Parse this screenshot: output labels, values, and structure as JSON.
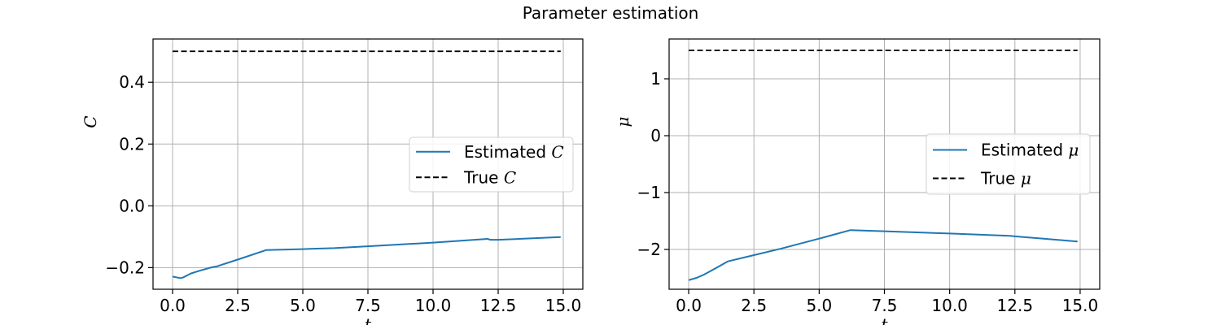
{
  "figure": {
    "title": "Parameter estimation"
  },
  "chart_data": [
    {
      "type": "line",
      "id": "C",
      "title": "",
      "xlabel": "t",
      "ylabel": "C",
      "xlim": [
        -0.75,
        15.75
      ],
      "ylim": [
        -0.27,
        0.54
      ],
      "xticks": [
        0.0,
        2.5,
        5.0,
        7.5,
        10.0,
        12.5,
        15.0
      ],
      "xtick_labels": [
        "0.0",
        "2.5",
        "5.0",
        "7.5",
        "10.0",
        "12.5",
        "15.0"
      ],
      "yticks": [
        -0.2,
        0.0,
        0.2,
        0.4
      ],
      "ytick_labels": [
        "−0.2",
        "0.0",
        "0.2",
        "0.4"
      ],
      "grid": true,
      "legend_position": "center-right",
      "series": [
        {
          "name": "Estimated C",
          "legend_prefix": "Estimated ",
          "legend_symbol": "C",
          "color": "#1f77b4",
          "style": "solid",
          "x": [
            0.0,
            0.3,
            0.4,
            0.7,
            1.0,
            1.5,
            1.7,
            2.5,
            3.6,
            5.0,
            6.2,
            7.5,
            10.0,
            12.1,
            12.2,
            12.5,
            14.9
          ],
          "y": [
            -0.229,
            -0.234,
            -0.232,
            -0.219,
            -0.211,
            -0.199,
            -0.196,
            -0.174,
            -0.143,
            -0.14,
            -0.137,
            -0.131,
            -0.119,
            -0.107,
            -0.11,
            -0.11,
            -0.101
          ]
        },
        {
          "name": "True C",
          "legend_prefix": "True ",
          "legend_symbol": "C",
          "color": "#000000",
          "style": "dashed",
          "x": [
            0.0,
            14.9
          ],
          "y": [
            0.5,
            0.5
          ]
        }
      ]
    },
    {
      "type": "line",
      "id": "mu",
      "title": "",
      "xlabel": "t",
      "ylabel": "μ",
      "xlim": [
        -0.75,
        15.75
      ],
      "ylim": [
        -2.7,
        1.7
      ],
      "xticks": [
        0.0,
        2.5,
        5.0,
        7.5,
        10.0,
        12.5,
        15.0
      ],
      "xtick_labels": [
        "0.0",
        "2.5",
        "5.0",
        "7.5",
        "10.0",
        "12.5",
        "15.0"
      ],
      "yticks": [
        -2,
        -1,
        0,
        1
      ],
      "ytick_labels": [
        "−2",
        "−1",
        "0",
        "1"
      ],
      "grid": true,
      "legend_position": "center-right",
      "series": [
        {
          "name": "Estimated μ",
          "legend_prefix": "Estimated ",
          "legend_symbol": "μ",
          "color": "#1f77b4",
          "style": "solid",
          "x": [
            0.0,
            0.3,
            0.6,
            1.0,
            1.5,
            2.5,
            3.5,
            5.0,
            6.2,
            7.5,
            10.0,
            12.3,
            12.5,
            14.9
          ],
          "y": [
            -2.54,
            -2.5,
            -2.44,
            -2.34,
            -2.21,
            -2.1,
            -1.99,
            -1.81,
            -1.66,
            -1.68,
            -1.72,
            -1.76,
            -1.77,
            -1.86
          ]
        },
        {
          "name": "True μ",
          "legend_prefix": "True ",
          "legend_symbol": "μ",
          "color": "#000000",
          "style": "dashed",
          "x": [
            0.0,
            14.9
          ],
          "y": [
            1.5,
            1.5
          ]
        }
      ]
    }
  ]
}
